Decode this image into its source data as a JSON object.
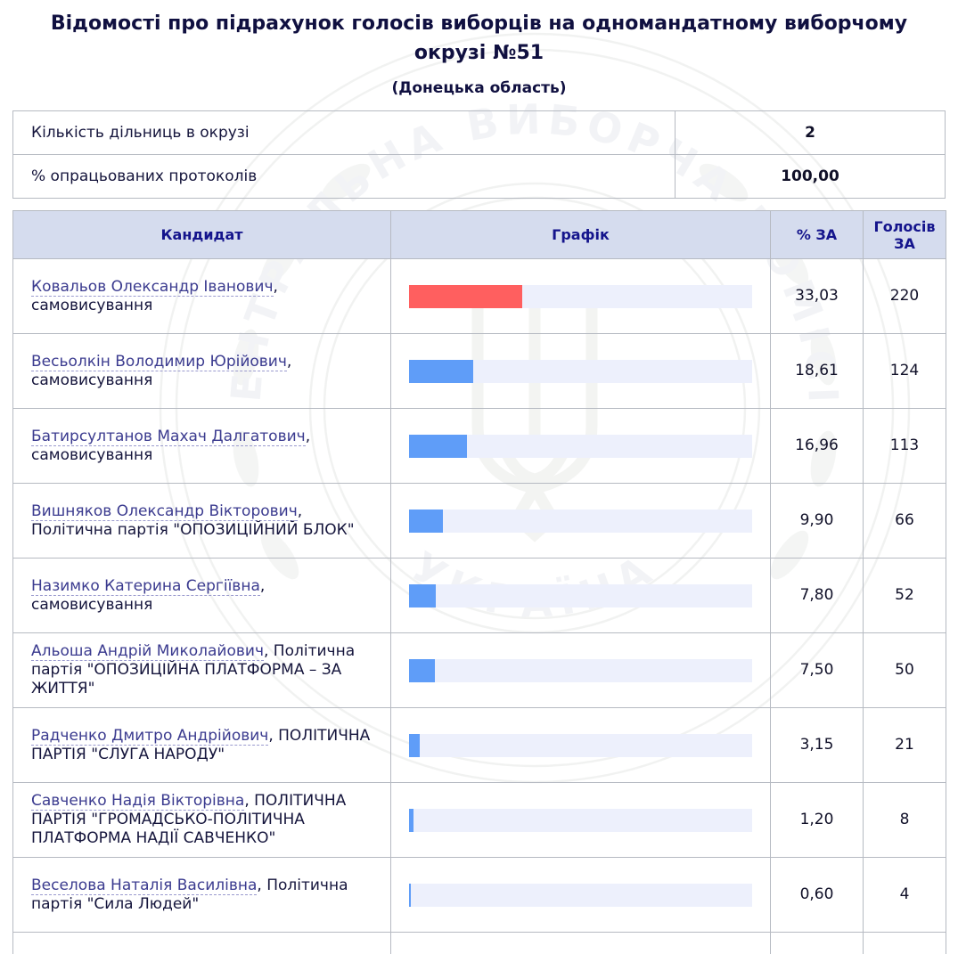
{
  "page": {
    "title": "Відомості про підрахунок голосів виборців на одномандатному виборчому окрузі №51",
    "subtitle": "(Донецька область)"
  },
  "summary": {
    "rows": [
      {
        "label": "Кількість дільниць в окрузі",
        "value": "2"
      },
      {
        "label": "% опрацьованих протоколів",
        "value": "100,00"
      }
    ]
  },
  "results_table": {
    "headers": {
      "candidate": "Кандидат",
      "graph": "Графік",
      "percent": "% ЗА",
      "votes": "Голосів ЗА"
    },
    "rows": [
      {
        "name": "Ковальов Олександр Іванович",
        "affiliation": "самовисування",
        "percent": "33,03",
        "pct_value": 33.03,
        "votes": "220",
        "bar_color": "#ff5f5f"
      },
      {
        "name": "Весьолкін Володимир Юрійович",
        "affiliation": "самовисування",
        "percent": "18,61",
        "pct_value": 18.61,
        "votes": "124",
        "bar_color": "#5f9df8"
      },
      {
        "name": "Батирсултанов Махач Далгатович",
        "affiliation": "самовисування",
        "percent": "16,96",
        "pct_value": 16.96,
        "votes": "113",
        "bar_color": "#5f9df8"
      },
      {
        "name": "Вишняков Олександр Вікторович",
        "affiliation": "Політична партія \"ОПОЗИЦІЙНИЙ БЛОК\"",
        "percent": "9,90",
        "pct_value": 9.9,
        "votes": "66",
        "bar_color": "#5f9df8"
      },
      {
        "name": "Назимко Катерина Сергіївна",
        "affiliation": "самовисування",
        "percent": "7,80",
        "pct_value": 7.8,
        "votes": "52",
        "bar_color": "#5f9df8"
      },
      {
        "name": "Альоша Андрій Миколайович",
        "affiliation": "Політична партія \"ОПОЗИЦІЙНА ПЛАТФОРМА – ЗА ЖИТТЯ\"",
        "percent": "7,50",
        "pct_value": 7.5,
        "votes": "50",
        "bar_color": "#5f9df8"
      },
      {
        "name": "Радченко Дмитро Андрійович",
        "affiliation": "ПОЛІТИЧНА ПАРТІЯ \"СЛУГА НАРОДУ\"",
        "percent": "3,15",
        "pct_value": 3.15,
        "votes": "21",
        "bar_color": "#5f9df8"
      },
      {
        "name": "Савченко Надія Вікторівна",
        "affiliation": "ПОЛІТИЧНА ПАРТІЯ \"ГРОМАДСЬКО-ПОЛІТИЧНА ПЛАТФОРМА НАДІЇ САВЧЕНКО\"",
        "percent": "1,20",
        "pct_value": 1.2,
        "votes": "8",
        "bar_color": "#5f9df8"
      },
      {
        "name": "Веселова Наталія Василівна",
        "affiliation": "Політична партія \"Сила Людей\"",
        "percent": "0,60",
        "pct_value": 0.6,
        "votes": "4",
        "bar_color": "#5f9df8"
      }
    ]
  },
  "chart_data": {
    "type": "bar",
    "orientation": "horizontal",
    "categories": [
      "Ковальов Олександр Іванович",
      "Весьолкін Володимир Юрійович",
      "Батирсултанов Махач Далгатович",
      "Вишняков Олександр Вікторович",
      "Назимко Катерина Сергіївна",
      "Альоша Андрій Миколайович",
      "Радченко Дмитро Андрійович",
      "Савченко Надія Вікторівна",
      "Веселова Наталія Василівна"
    ],
    "series": [
      {
        "name": "% ЗА",
        "values": [
          33.03,
          18.61,
          16.96,
          9.9,
          7.8,
          7.5,
          3.15,
          1.2,
          0.6
        ]
      },
      {
        "name": "Голосів ЗА",
        "values": [
          220,
          124,
          113,
          66,
          52,
          50,
          21,
          8,
          4
        ]
      }
    ],
    "title": "Графік",
    "xlabel": "% ЗА",
    "ylabel": "Кандидат",
    "xlim": [
      0,
      100
    ],
    "grid": false,
    "legend_position": "none"
  },
  "colors": {
    "leader_bar": "#ff5f5f",
    "bar": "#5f9df8",
    "bar_track": "#edf0fc",
    "header_bg": "#d5dcee",
    "header_text": "#14148c",
    "link_color": "#3b3b8f"
  },
  "watermark": {
    "text_top": "ЦЕНТРАЛЬНА ВИБОРЧА КОМІСІЯ",
    "text_bottom": "УКРАЇНА"
  }
}
